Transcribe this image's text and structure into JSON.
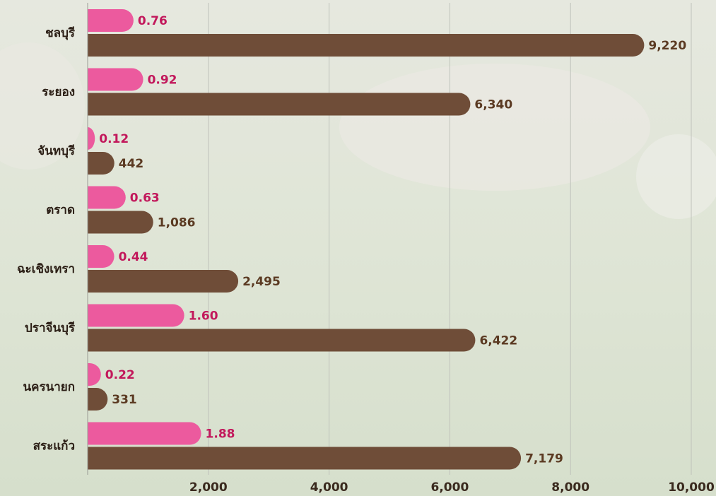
{
  "chart_data": {
    "type": "hbar",
    "categories": [
      "ชลบุรี",
      "ระยอง",
      "จันทบุรี",
      "ตราด",
      "ฉะเชิงเทรา",
      "ปราจีนบุรี",
      "นครนายก",
      "สระแก้ว"
    ],
    "series": [
      {
        "color": "#ec5a9e",
        "label_color": "#c2185b",
        "axis": "y2",
        "values": [
          0.76,
          0.92,
          0.12,
          0.63,
          0.44,
          1.6,
          0.22,
          1.88
        ],
        "value_labels": [
          "0.76",
          "0.92",
          "0.12",
          "0.63",
          "0.44",
          "1.60",
          "0.22",
          "1.88"
        ]
      },
      {
        "color": "#6f4d38",
        "label_color": "#5b3a22",
        "values": [
          9220,
          6340,
          442,
          1086,
          2495,
          6422,
          331,
          7179
        ],
        "value_labels": [
          "9,220",
          "6,340",
          "442",
          "1,086",
          "2,495",
          "6,422",
          "331",
          "7,179"
        ]
      }
    ],
    "ylim": [
      0,
      10000
    ],
    "yticks": [
      {
        "value": 2000,
        "label": "2,000"
      },
      {
        "value": 4000,
        "label": "4,000"
      },
      {
        "value": 6000,
        "label": "6,000"
      },
      {
        "value": 8000,
        "label": "8,000"
      },
      {
        "value": 10000,
        "label": "10,000"
      }
    ],
    "y2lim": [
      0,
      10
    ],
    "grid": true
  }
}
